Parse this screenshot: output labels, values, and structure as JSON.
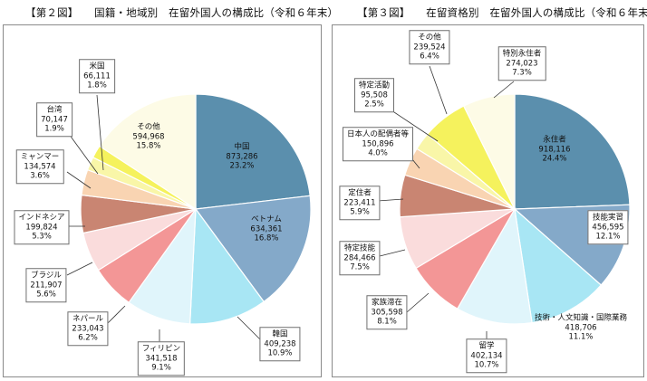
{
  "charts": [
    {
      "title": "【第２図】　　国籍・地域別　在留外国人の構成比（令和６年末）",
      "chart_data": {
        "type": "pie",
        "title": "【第２図】　　国籍・地域別　在留外国人の構成比（令和６年末）",
        "slices": [
          {
            "label": "中国",
            "count": "873,286",
            "percent_text": "23.2%",
            "value": 23.2,
            "color": "#5b8fad"
          },
          {
            "label": "ベトナム",
            "count": "634,361",
            "percent_text": "16.8%",
            "value": 16.8,
            "color": "#84a9c9"
          },
          {
            "label": "韓国",
            "count": "409,238",
            "percent_text": "10.9%",
            "value": 10.9,
            "color": "#a8e6f4"
          },
          {
            "label": "フィリピン",
            "count": "341,518",
            "percent_text": "9.1%",
            "value": 9.1,
            "color": "#e0f5fb"
          },
          {
            "label": "ネパール",
            "count": "233,043",
            "percent_text": "6.2%",
            "value": 6.2,
            "color": "#f39696"
          },
          {
            "label": "ブラジル",
            "count": "211,907",
            "percent_text": "5.6%",
            "value": 5.6,
            "color": "#fadcdc"
          },
          {
            "label": "インドネシア",
            "count": "199,824",
            "percent_text": "5.3%",
            "value": 5.3,
            "color": "#c98572"
          },
          {
            "label": "ミャンマー",
            "count": "134,574",
            "percent_text": "3.6%",
            "value": 3.6,
            "color": "#f9d4b2"
          },
          {
            "label": "台湾",
            "count": "70,147",
            "percent_text": "1.9%",
            "value": 1.9,
            "color": "#f9f6a8"
          },
          {
            "label": "米国",
            "count": "66,111",
            "percent_text": "1.8%",
            "value": 1.8,
            "color": "#f5f25d"
          },
          {
            "label": "その他",
            "count": "594,968",
            "percent_text": "15.8%",
            "value": 15.8,
            "color": "#fdfbe6"
          }
        ]
      }
    },
    {
      "title": "【第３図】　　在留資格別　在留外国人の構成比（令和６年末）",
      "chart_data": {
        "type": "pie",
        "title": "【第３図】　　在留資格別　在留外国人の構成比（令和６年末）",
        "slices": [
          {
            "label": "永住者",
            "count": "918,116",
            "percent_text": "24.4%",
            "value": 24.4,
            "color": "#5b8fad"
          },
          {
            "label": "技能実習",
            "count": "456,595",
            "percent_text": "12.1%",
            "value": 12.1,
            "color": "#84a9c9"
          },
          {
            "label": "技術・人文知識・国際業務",
            "count": "418,706",
            "percent_text": "11.1%",
            "value": 11.1,
            "color": "#a8e6f4"
          },
          {
            "label": "留学",
            "count": "402,134",
            "percent_text": "10.7%",
            "value": 10.7,
            "color": "#e0f5fb"
          },
          {
            "label": "家族滞在",
            "count": "305,598",
            "percent_text": "8.1%",
            "value": 8.1,
            "color": "#f39696"
          },
          {
            "label": "特定技能",
            "count": "284,466",
            "percent_text": "7.5%",
            "value": 7.5,
            "color": "#fadcdc"
          },
          {
            "label": "定住者",
            "count": "223,411",
            "percent_text": "5.9%",
            "value": 5.9,
            "color": "#c98572"
          },
          {
            "label": "日本人の配偶者等",
            "count": "150,896",
            "percent_text": "4.0%",
            "value": 4.0,
            "color": "#f9d4b2"
          },
          {
            "label": "特定活動",
            "count": "95,508",
            "percent_text": "2.5%",
            "value": 2.5,
            "color": "#f9f6a8"
          },
          {
            "label": "その他",
            "count": "239,524",
            "percent_text": "6.4%",
            "value": 6.4,
            "color": "#f5f25d"
          },
          {
            "label": "特別永住者",
            "count": "274,023",
            "percent_text": "7.3%",
            "value": 7.3,
            "color": "#fdfbe6"
          }
        ]
      }
    }
  ]
}
